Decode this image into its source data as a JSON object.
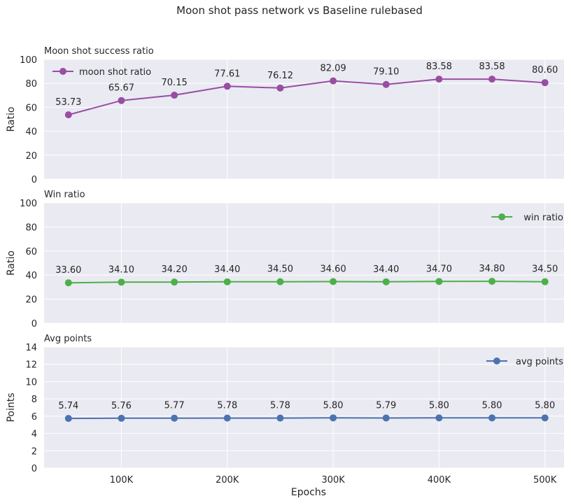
{
  "figure_title": "Moon shot pass network vs Baseline rulebased",
  "x_axis_label": "Epochs",
  "chart_data": [
    {
      "type": "line",
      "title": "Moon shot success ratio",
      "xlabel": "",
      "ylabel": "Ratio",
      "x": [
        50000,
        100000,
        150000,
        200000,
        250000,
        300000,
        350000,
        400000,
        450000,
        500000
      ],
      "xticks": [
        "100K",
        "200K",
        "300K",
        "400K",
        "500K"
      ],
      "xlim": [
        27000,
        518000
      ],
      "ylim": [
        0,
        100
      ],
      "yticks": [
        "0",
        "20",
        "40",
        "60",
        "80",
        "100"
      ],
      "grid": true,
      "legend_position": "top-left",
      "series": [
        {
          "name": "moon shot ratio",
          "color": "#984ea3",
          "values": [
            53.73,
            65.67,
            70.15,
            77.61,
            76.12,
            82.09,
            79.1,
            83.58,
            83.58,
            80.6
          ],
          "labels": [
            "53.73",
            "65.67",
            "70.15",
            "77.61",
            "76.12",
            "82.09",
            "79.10",
            "83.58",
            "83.58",
            "80.60"
          ]
        }
      ]
    },
    {
      "type": "line",
      "title": "Win ratio",
      "xlabel": "",
      "ylabel": "Ratio",
      "x": [
        50000,
        100000,
        150000,
        200000,
        250000,
        300000,
        350000,
        400000,
        450000,
        500000
      ],
      "xticks": [
        "100K",
        "200K",
        "300K",
        "400K",
        "500K"
      ],
      "xlim": [
        27000,
        518000
      ],
      "ylim": [
        0,
        100
      ],
      "yticks": [
        "0",
        "20",
        "40",
        "60",
        "80",
        "100"
      ],
      "grid": true,
      "legend_position": "top-right",
      "series": [
        {
          "name": "win ratio",
          "color": "#4daf4a",
          "values": [
            33.6,
            34.1,
            34.2,
            34.4,
            34.5,
            34.6,
            34.4,
            34.7,
            34.8,
            34.5
          ],
          "labels": [
            "33.60",
            "34.10",
            "34.20",
            "34.40",
            "34.50",
            "34.60",
            "34.40",
            "34.70",
            "34.80",
            "34.50"
          ]
        }
      ]
    },
    {
      "type": "line",
      "title": "Avg points",
      "xlabel": "Epochs",
      "ylabel": "Points",
      "x": [
        50000,
        100000,
        150000,
        200000,
        250000,
        300000,
        350000,
        400000,
        450000,
        500000
      ],
      "xticks": [
        "100K",
        "200K",
        "300K",
        "400K",
        "500K"
      ],
      "xlim": [
        27000,
        518000
      ],
      "ylim": [
        0,
        14
      ],
      "yticks": [
        "0",
        "2",
        "4",
        "6",
        "8",
        "10",
        "12",
        "14"
      ],
      "grid": true,
      "legend_position": "top-right",
      "series": [
        {
          "name": "avg points",
          "color": "#4c72b0",
          "values": [
            5.74,
            5.76,
            5.77,
            5.78,
            5.78,
            5.8,
            5.79,
            5.8,
            5.8,
            5.8
          ],
          "labels": [
            "5.74",
            "5.76",
            "5.77",
            "5.78",
            "5.78",
            "5.80",
            "5.79",
            "5.80",
            "5.80",
            "5.80"
          ]
        }
      ]
    }
  ]
}
